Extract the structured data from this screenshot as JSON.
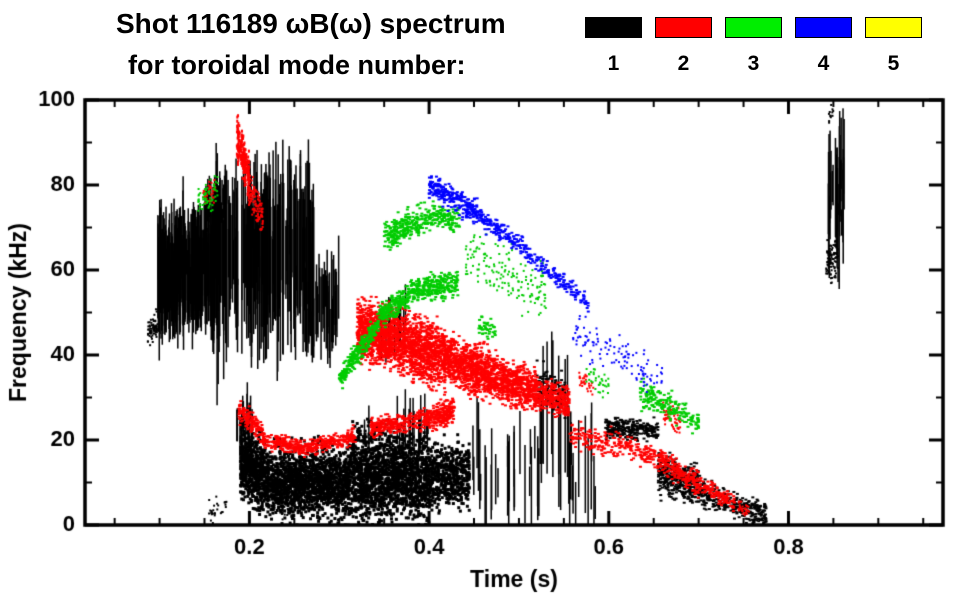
{
  "header": {
    "title": "Shot 116189 ωB(ω) spectrum",
    "subtitle": "for toroidal mode number:"
  },
  "legend": [
    {
      "label": "1",
      "color": "#000000"
    },
    {
      "label": "2",
      "color": "#ff0000"
    },
    {
      "label": "3",
      "color": "#00ee00"
    },
    {
      "label": "4",
      "color": "#0000ff"
    },
    {
      "label": "5",
      "color": "#ffff00"
    }
  ],
  "chart_data": {
    "type": "scatter",
    "title": "Shot 116189 ωB(ω) spectrum for toroidal mode number: 1 2 3 4 5",
    "xlabel": "Time (s)",
    "ylabel": "Frequency (kHz)",
    "xlim": [
      0.017,
      0.972
    ],
    "ylim": [
      0,
      100
    ],
    "xticks": [
      0.2,
      0.4,
      0.6,
      0.8
    ],
    "xtick_labels": [
      "0.2",
      "0.4",
      "0.6",
      "0.8"
    ],
    "yticks": [
      0,
      20,
      40,
      60,
      80,
      100
    ],
    "ytick_labels": [
      "0",
      "20",
      "40",
      "60",
      "80",
      "100"
    ],
    "xminor": 0.05,
    "yminor": 10,
    "grid": false,
    "legend_position": "top",
    "series": [
      {
        "name": "n=1",
        "color": "#000000",
        "bands": [
          {
            "mode": "dots",
            "t": [
              0.086,
              0.098
            ],
            "f": [
              45,
              47
            ],
            "s": 1.5,
            "n": 70,
            "w": 2,
            "h": 2
          },
          {
            "mode": "vs",
            "t": [
              0.098,
              0.16
            ],
            "f": [
              59,
              61
            ],
            "j": 4,
            "hh": [
              3,
              13
            ],
            "n": 300
          },
          {
            "mode": "vs",
            "t": [
              0.16,
              0.272
            ],
            "f": [
              63,
              64
            ],
            "j": 5,
            "hh": [
              4,
              21
            ],
            "n": 230
          },
          {
            "mode": "vs",
            "t": [
              0.15,
              0.175
            ],
            "f": [
              74,
              76
            ],
            "j": 2,
            "hh": [
              2,
              5
            ],
            "n": 40
          },
          {
            "mode": "vs",
            "t": [
              0.262,
              0.3
            ],
            "f": [
              50,
              52
            ],
            "j": 3,
            "hh": [
              4,
              11
            ],
            "n": 45
          },
          {
            "mode": "vs",
            "t": [
              0.185,
              0.205
            ],
            "f": [
              23,
              24
            ],
            "j": 2,
            "hh": [
              2,
              5
            ],
            "n": 18
          },
          {
            "mode": "dots",
            "t": [
              0.19,
              0.22
            ],
            "f": [
              15,
              11
            ],
            "s": 4.0,
            "n": 650,
            "w": 3,
            "h": 3
          },
          {
            "mode": "dots",
            "t": [
              0.22,
              0.27
            ],
            "f": [
              10,
              10
            ],
            "s": 3.8,
            "n": 850,
            "w": 3,
            "h": 3
          },
          {
            "mode": "dots",
            "t": [
              0.27,
              0.31
            ],
            "f": [
              11,
              9
            ],
            "s": 4.2,
            "n": 700,
            "w": 3,
            "h": 3
          },
          {
            "mode": "dots",
            "t": [
              0.31,
              0.36
            ],
            "f": [
              11,
              12
            ],
            "s": 5.2,
            "n": 950,
            "w": 3,
            "h": 3
          },
          {
            "mode": "dots",
            "t": [
              0.36,
              0.4
            ],
            "f": [
              12,
              11
            ],
            "s": 4.8,
            "n": 750,
            "w": 3,
            "h": 3
          },
          {
            "mode": "dots",
            "t": [
              0.4,
              0.445
            ],
            "f": [
              11,
              12
            ],
            "s": 3.6,
            "n": 520,
            "w": 3,
            "h": 3
          },
          {
            "mode": "vs",
            "t": [
              0.315,
              0.4
            ],
            "f": [
              22,
              24
            ],
            "j": 2,
            "hh": [
              2,
              7
            ],
            "n": 20
          },
          {
            "mode": "vs",
            "t": [
              0.345,
              0.375
            ],
            "f": [
              46,
              48
            ],
            "j": 2,
            "hh": [
              2,
              6
            ],
            "n": 14
          },
          {
            "mode": "vs",
            "t": [
              0.445,
              0.525
            ],
            "f": [
              14,
              14
            ],
            "j": 4,
            "hh": [
              2,
              11
            ],
            "n": 26
          },
          {
            "mode": "dots",
            "t": [
              0.52,
              0.552
            ],
            "f": [
              33,
              30
            ],
            "s": 2.5,
            "n": 130,
            "w": 3,
            "h": 2
          },
          {
            "mode": "vs",
            "t": [
              0.52,
              0.585
            ],
            "f": [
              16,
              14
            ],
            "j": 4,
            "hh": [
              3,
              12
            ],
            "n": 18
          },
          {
            "mode": "vs",
            "t": [
              0.525,
              0.565
            ],
            "f": [
              28,
              25
            ],
            "j": 4,
            "hh": [
              8,
              18
            ],
            "n": 10
          },
          {
            "mode": "dots",
            "t": [
              0.595,
              0.655
            ],
            "f": [
              23,
              22
            ],
            "s": 1.2,
            "n": 260,
            "w": 3,
            "h": 2
          },
          {
            "mode": "dots",
            "t": [
              0.655,
              0.7
            ],
            "f": [
              12,
              9
            ],
            "s": 2.2,
            "n": 380,
            "w": 3,
            "h": 2
          },
          {
            "mode": "dots",
            "t": [
              0.7,
              0.775
            ],
            "f": [
              8,
              2
            ],
            "s": 1.5,
            "n": 330,
            "w": 3,
            "h": 2
          },
          {
            "mode": "vs",
            "t": [
              0.843,
              0.862
            ],
            "f": [
              76,
              80
            ],
            "j": 6,
            "hh": [
              3,
              16
            ],
            "n": 34
          },
          {
            "mode": "dots",
            "t": [
              0.842,
              0.855
            ],
            "f": [
              62,
              63
            ],
            "s": 2.5,
            "n": 90,
            "w": 2,
            "h": 2
          },
          {
            "mode": "dots",
            "t": [
              0.845,
              0.85
            ],
            "f": [
              96,
              98
            ],
            "s": 1.0,
            "n": 12,
            "w": 2,
            "h": 2
          },
          {
            "mode": "dots",
            "t": [
              0.155,
              0.175
            ],
            "f": [
              3,
              5
            ],
            "s": 1.2,
            "n": 28,
            "w": 2,
            "h": 2
          },
          {
            "mode": "dots",
            "t": [
              0.236,
              0.246
            ],
            "f": [
              3,
              3
            ],
            "s": 0.8,
            "n": 15,
            "w": 2,
            "h": 2
          }
        ]
      },
      {
        "name": "n=2",
        "color": "#ff0000",
        "bands": [
          {
            "mode": "dots",
            "t": [
              0.186,
              0.2
            ],
            "f": [
              91,
              82
            ],
            "s": 2.5,
            "n": 220,
            "w": 2,
            "h": 3
          },
          {
            "mode": "dots",
            "t": [
              0.198,
              0.215
            ],
            "f": [
              80,
              72
            ],
            "s": 2.0,
            "n": 120,
            "w": 2,
            "h": 2
          },
          {
            "mode": "dots",
            "t": [
              0.148,
              0.162
            ],
            "f": [
              77,
              79
            ],
            "s": 1.5,
            "n": 40,
            "w": 2,
            "h": 2
          },
          {
            "mode": "dots",
            "t": [
              0.188,
              0.215
            ],
            "f": [
              27,
              22
            ],
            "s": 1.2,
            "n": 150,
            "w": 3,
            "h": 2
          },
          {
            "mode": "dots",
            "t": [
              0.215,
              0.265
            ],
            "f": [
              20,
              18
            ],
            "s": 0.9,
            "n": 210,
            "w": 3,
            "h": 2
          },
          {
            "mode": "dots",
            "t": [
              0.265,
              0.318
            ],
            "f": [
              18,
              21
            ],
            "s": 0.9,
            "n": 210,
            "w": 3,
            "h": 2
          },
          {
            "mode": "dots",
            "t": [
              0.32,
              0.36
            ],
            "f": [
              46,
              44
            ],
            "s": 3.2,
            "n": 900,
            "w": 3,
            "h": 2
          },
          {
            "mode": "dots",
            "t": [
              0.36,
              0.42
            ],
            "f": [
              44,
              39
            ],
            "s": 3.4,
            "n": 1150,
            "w": 3,
            "h": 2
          },
          {
            "mode": "dots",
            "t": [
              0.42,
              0.47
            ],
            "f": [
              39,
              35
            ],
            "s": 2.8,
            "n": 800,
            "w": 3,
            "h": 2
          },
          {
            "mode": "dots",
            "t": [
              0.47,
              0.52
            ],
            "f": [
              35,
              31
            ],
            "s": 2.4,
            "n": 650,
            "w": 3,
            "h": 2
          },
          {
            "mode": "dots",
            "t": [
              0.52,
              0.556
            ],
            "f": [
              31,
              29
            ],
            "s": 1.8,
            "n": 300,
            "w": 3,
            "h": 2
          },
          {
            "mode": "dots",
            "t": [
              0.335,
              0.4
            ],
            "f": [
              23,
              25
            ],
            "s": 1.1,
            "n": 300,
            "w": 3,
            "h": 2
          },
          {
            "mode": "dots",
            "t": [
              0.4,
              0.428
            ],
            "f": [
              25,
              27
            ],
            "s": 1.4,
            "n": 220,
            "w": 3,
            "h": 2
          },
          {
            "mode": "dots",
            "t": [
              0.556,
              0.61
            ],
            "f": [
              21,
              19
            ],
            "s": 1.6,
            "n": 130,
            "w": 3,
            "h": 2
          },
          {
            "mode": "dots",
            "t": [
              0.565,
              0.585
            ],
            "f": [
              35,
              32
            ],
            "s": 1.0,
            "n": 30,
            "w": 2,
            "h": 2
          },
          {
            "mode": "dots",
            "t": [
              0.61,
              0.65
            ],
            "f": [
              19,
              16
            ],
            "s": 1.3,
            "n": 110,
            "w": 3,
            "h": 2
          },
          {
            "mode": "dots",
            "t": [
              0.65,
              0.705
            ],
            "f": [
              16,
              9
            ],
            "s": 1.4,
            "n": 220,
            "w": 3,
            "h": 2
          },
          {
            "mode": "dots",
            "t": [
              0.705,
              0.74
            ],
            "f": [
              9,
              5
            ],
            "s": 1.0,
            "n": 110,
            "w": 3,
            "h": 2
          },
          {
            "mode": "dots",
            "t": [
              0.66,
              0.68
            ],
            "f": [
              27,
              24
            ],
            "s": 1.5,
            "n": 60,
            "w": 2,
            "h": 2
          },
          {
            "mode": "dots",
            "t": [
              0.744,
              0.756
            ],
            "f": [
              4,
              4
            ],
            "s": 0.8,
            "n": 30,
            "w": 2,
            "h": 2
          }
        ]
      },
      {
        "name": "n=3",
        "color": "#00cc00",
        "bands": [
          {
            "mode": "dots",
            "t": [
              0.3,
              0.345
            ],
            "f": [
              34,
              48
            ],
            "s": 1.3,
            "n": 260,
            "w": 3,
            "h": 2
          },
          {
            "mode": "dots",
            "t": [
              0.345,
              0.378
            ],
            "f": [
              49,
              54
            ],
            "s": 1.3,
            "n": 220,
            "w": 3,
            "h": 2
          },
          {
            "mode": "dots",
            "t": [
              0.378,
              0.432
            ],
            "f": [
              55,
              57
            ],
            "s": 1.4,
            "n": 300,
            "w": 3,
            "h": 2
          },
          {
            "mode": "dots",
            "t": [
              0.35,
              0.405
            ],
            "f": [
              68,
              73
            ],
            "s": 1.8,
            "n": 280,
            "w": 3,
            "h": 2
          },
          {
            "mode": "dots",
            "t": [
              0.405,
              0.435
            ],
            "f": [
              73,
              71
            ],
            "s": 1.3,
            "n": 110,
            "w": 3,
            "h": 2
          },
          {
            "mode": "dots",
            "t": [
              0.44,
              0.53
            ],
            "f": [
              63,
              55
            ],
            "s": 3.5,
            "n": 160,
            "w": 2,
            "h": 2
          },
          {
            "mode": "dots",
            "t": [
              0.455,
              0.475
            ],
            "f": [
              47,
              46
            ],
            "s": 1.0,
            "n": 40,
            "w": 3,
            "h": 2
          },
          {
            "mode": "dots",
            "t": [
              0.143,
              0.165
            ],
            "f": [
              76,
              79
            ],
            "s": 1.8,
            "n": 60,
            "w": 2,
            "h": 2
          },
          {
            "mode": "dots",
            "t": [
              0.575,
              0.6
            ],
            "f": [
              35,
              33
            ],
            "s": 1.5,
            "n": 35,
            "w": 2,
            "h": 2
          },
          {
            "mode": "dots",
            "t": [
              0.635,
              0.672
            ],
            "f": [
              31,
              27
            ],
            "s": 1.6,
            "n": 130,
            "w": 3,
            "h": 2
          },
          {
            "mode": "dots",
            "t": [
              0.672,
              0.7
            ],
            "f": [
              27,
              24
            ],
            "s": 1.2,
            "n": 70,
            "w": 3,
            "h": 2
          }
        ]
      },
      {
        "name": "n=4",
        "color": "#0000ff",
        "bands": [
          {
            "mode": "dots",
            "t": [
              0.4,
              0.45
            ],
            "f": [
              80,
              74
            ],
            "s": 1.4,
            "n": 230,
            "w": 3,
            "h": 2
          },
          {
            "mode": "dots",
            "t": [
              0.45,
              0.5
            ],
            "f": [
              74,
              66
            ],
            "s": 1.3,
            "n": 150,
            "w": 3,
            "h": 2
          },
          {
            "mode": "dots",
            "t": [
              0.5,
              0.55
            ],
            "f": [
              66,
              57
            ],
            "s": 1.2,
            "n": 110,
            "w": 3,
            "h": 2
          },
          {
            "mode": "dots",
            "t": [
              0.55,
              0.578
            ],
            "f": [
              57,
              52
            ],
            "s": 1.0,
            "n": 55,
            "w": 3,
            "h": 2
          },
          {
            "mode": "dots",
            "t": [
              0.56,
              0.61
            ],
            "f": [
              45,
              40
            ],
            "s": 2.2,
            "n": 55,
            "w": 2,
            "h": 2
          },
          {
            "mode": "dots",
            "t": [
              0.61,
              0.66
            ],
            "f": [
              40,
              34
            ],
            "s": 2.0,
            "n": 60,
            "w": 2,
            "h": 2
          }
        ]
      },
      {
        "name": "n=5",
        "color": "#ffff00",
        "bands": []
      }
    ]
  }
}
